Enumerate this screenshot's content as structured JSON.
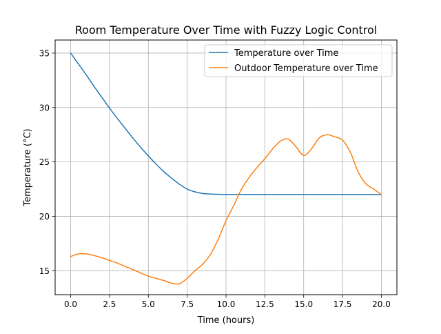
{
  "chart_data": {
    "type": "line",
    "title": "Room Temperature Over Time with Fuzzy Logic Control",
    "xlabel": "Time (hours)",
    "ylabel": "Temperature (°C)",
    "xlim": [
      -1.0,
      21.0
    ],
    "ylim": [
      12.8,
      36.2
    ],
    "xticks": [
      0.0,
      2.5,
      5.0,
      7.5,
      10.0,
      12.5,
      15.0,
      17.5,
      20.0
    ],
    "xtick_labels": [
      "0.0",
      "2.5",
      "5.0",
      "7.5",
      "10.0",
      "12.5",
      "15.0",
      "17.5",
      "20.0"
    ],
    "yticks": [
      15,
      20,
      25,
      30,
      35
    ],
    "ytick_labels": [
      "15",
      "20",
      "25",
      "30",
      "35"
    ],
    "grid": true,
    "legend_position": "top-right",
    "colors": {
      "temperature": "#1f77b4",
      "outdoor": "#ff7f0e",
      "grid": "#b0b0b0",
      "axes": "#000000"
    },
    "series": [
      {
        "name": "Temperature over Time",
        "x": [
          0,
          0.5,
          1,
          1.5,
          2,
          2.5,
          3,
          3.5,
          4,
          4.5,
          5,
          5.5,
          6,
          6.5,
          7,
          7.5,
          8,
          8.5,
          9,
          9.5,
          10,
          11,
          12,
          13,
          14,
          15,
          16,
          17,
          18,
          19,
          20
        ],
        "y": [
          35.0,
          34.0,
          33.0,
          31.95,
          30.95,
          29.95,
          29.0,
          28.1,
          27.2,
          26.35,
          25.55,
          24.8,
          24.1,
          23.5,
          22.95,
          22.5,
          22.25,
          22.1,
          22.05,
          22.02,
          22.0,
          22.0,
          22.0,
          22.0,
          22.0,
          22.0,
          22.0,
          22.0,
          22.0,
          22.0,
          22.0
        ]
      },
      {
        "name": "Outdoor Temperature over Time",
        "x": [
          0,
          0.5,
          1,
          1.5,
          2,
          2.5,
          3,
          3.5,
          4,
          4.5,
          5,
          5.5,
          6,
          6.5,
          7,
          7.5,
          8,
          8.5,
          9,
          9.5,
          10,
          10.5,
          11,
          11.5,
          12,
          12.5,
          13,
          13.5,
          14,
          14.5,
          15,
          15.5,
          16,
          16.5,
          17,
          17.5,
          18,
          18.5,
          19,
          19.5,
          20
        ],
        "y": [
          16.3,
          16.55,
          16.55,
          16.4,
          16.2,
          15.95,
          15.7,
          15.4,
          15.1,
          14.8,
          14.5,
          14.3,
          14.1,
          13.85,
          13.8,
          14.3,
          15.0,
          15.6,
          16.5,
          17.9,
          19.6,
          21.0,
          22.5,
          23.6,
          24.5,
          25.3,
          26.2,
          26.9,
          27.1,
          26.4,
          25.6,
          26.2,
          27.2,
          27.5,
          27.3,
          27.0,
          25.9,
          24.1,
          23.0,
          22.5,
          22.0
        ]
      }
    ]
  }
}
